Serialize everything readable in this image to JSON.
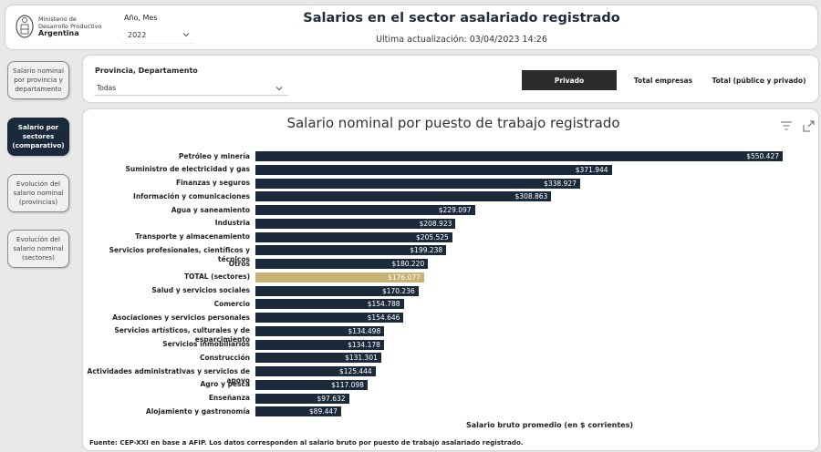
{
  "header": {
    "logo_lines": [
      "Ministerio de",
      "Desarrollo Productivo"
    ],
    "logo_strong": "Argentina",
    "period_label": "Año, Mes",
    "period_value": "2022",
    "title": "Salarios en el sector asalariado registrado",
    "updated": "Ultima actualización: 03/04/2023 14:26"
  },
  "nav": [
    {
      "label": "Salario nominal por provincia y departamento",
      "active": false
    },
    {
      "label": "Salario por sectores (comparativo)",
      "active": true
    },
    {
      "label": "Evolución del salario nominal (provincias)",
      "active": false
    },
    {
      "label": "Evolución del salario nominal (sectores)",
      "active": false
    }
  ],
  "filter": {
    "dept_label": "Provincia, Departamento",
    "dept_value": "Todas",
    "segments": [
      "Privado",
      "Total empresas",
      "Total (público y privado)"
    ],
    "active_segment": 0
  },
  "colors": {
    "bar": "#1b2a3b",
    "highlight": "#c8b273"
  },
  "chart_data": {
    "type": "bar",
    "orientation": "horizontal",
    "title": "Salario nominal por puesto de trabajo registrado",
    "xlabel": "Salario bruto promedio (en $ corrientes)",
    "source": "Fuente: CEP-XXI en base a AFIP. Los datos corresponden al salario bruto por puesto de trabajo asalariado registrado.",
    "highlight": "TOTAL (sectores)",
    "categories": [
      "Petróleo y minería",
      "Suministro de electricidad y gas",
      "Finanzas y seguros",
      "Información y comunicaciones",
      "Agua y saneamiento",
      "Industria",
      "Transporte y almacenamiento",
      "Servicios profesionales, científicos y técnicos",
      "Otros",
      "TOTAL (sectores)",
      "Salud y servicios sociales",
      "Comercio",
      "Asociaciones y servicios personales",
      "Servicios artísticos, culturales y de esparcimiento",
      "Servicios inmobiliarios",
      "Construcción",
      "Actividades administrativas y servicios de apoyo",
      "Agro y pesca",
      "Enseñanza",
      "Alojamiento y gastronomía"
    ],
    "values": [
      550427,
      371944,
      338927,
      308863,
      229097,
      208923,
      205525,
      199238,
      180220,
      176077,
      170236,
      154788,
      154646,
      134498,
      134178,
      131301,
      125444,
      117098,
      97632,
      89447
    ],
    "labels": [
      "$550.427",
      "$371.944",
      "$338.927",
      "$308.863",
      "$229.097",
      "$208.923",
      "$205.525",
      "$199.238",
      "$180.220",
      "$176.077",
      "$170.236",
      "$154.788",
      "$154.646",
      "$134.498",
      "$134.178",
      "$131.301",
      "$125.444",
      "$117.098",
      "$97.632",
      "$89.447"
    ]
  }
}
